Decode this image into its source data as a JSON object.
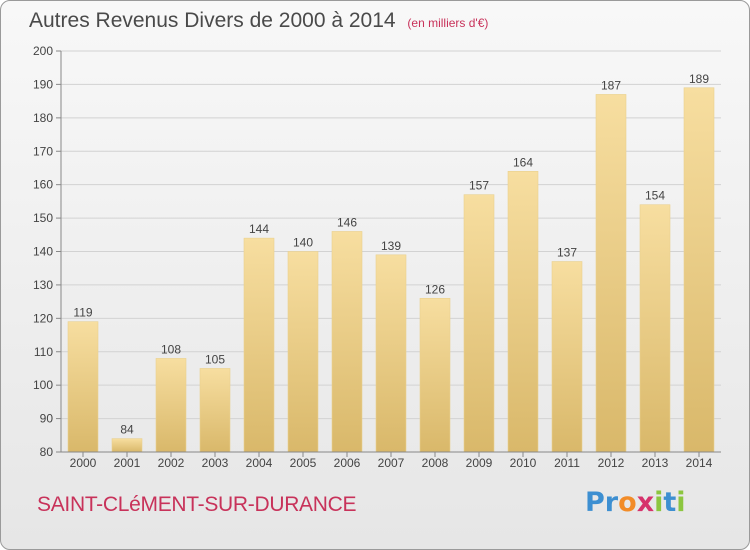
{
  "header": {
    "title": "Autres Revenus Divers de 2000 à 2014",
    "subtitle": "(en milliers d'€)"
  },
  "footer": {
    "commune": "SAINT-CLéMENT-SUR-DURANCE",
    "logo_letters": [
      {
        "char": "P",
        "color": "#3d8fd1"
      },
      {
        "char": "r",
        "color": "#3d8fd1"
      },
      {
        "char": "o",
        "color": "#f28c28"
      },
      {
        "char": "x",
        "color": "#d6336c"
      },
      {
        "char": "i",
        "color": "#8cc63f"
      },
      {
        "char": "t",
        "color": "#3d8fd1"
      },
      {
        "char": "i",
        "color": "#8cc63f"
      }
    ]
  },
  "colors": {
    "bar_light": "#f7dea0",
    "bar_dark": "#d9b86a",
    "grid": "#d2d2d2",
    "axis_text": "#444444",
    "accent": "#c8325a"
  },
  "chart_data": {
    "type": "bar",
    "title": "Autres Revenus Divers de 2000 à 2014",
    "subtitle": "(en milliers d'€)",
    "categories": [
      "2000",
      "2001",
      "2002",
      "2003",
      "2004",
      "2005",
      "2006",
      "2007",
      "2008",
      "2009",
      "2010",
      "2011",
      "2012",
      "2013",
      "2014"
    ],
    "values": [
      119,
      84,
      108,
      105,
      144,
      140,
      146,
      139,
      126,
      157,
      164,
      137,
      187,
      154,
      189
    ],
    "ylim": [
      80,
      200
    ],
    "yticks": [
      80,
      90,
      100,
      110,
      120,
      130,
      140,
      150,
      160,
      170,
      180,
      190,
      200
    ],
    "grid": true,
    "legend": "none"
  }
}
